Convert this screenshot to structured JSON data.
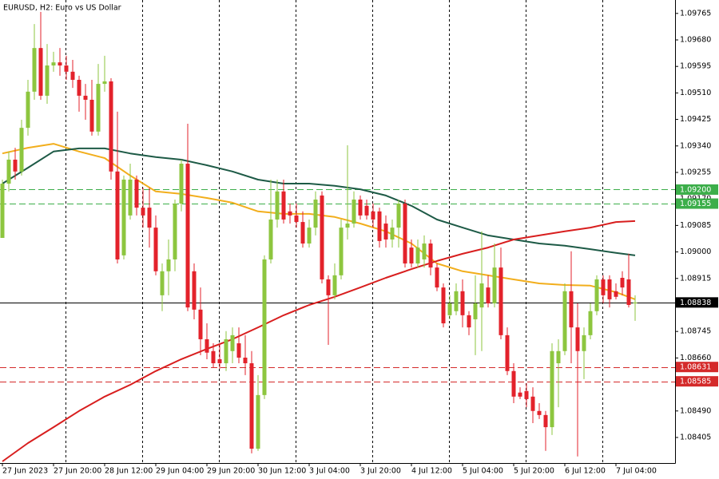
{
  "chart_data": {
    "type": "candlestick",
    "title": "EURUSD, H2:  Euro vs US Dollar",
    "categories": [
      "27 Jun 2023",
      null,
      null,
      null,
      null,
      null,
      null,
      null,
      "27 Jun 20:00",
      null,
      null,
      null,
      null,
      null,
      null,
      null,
      "28 Jun 12:00",
      null,
      null,
      null,
      null,
      null,
      null,
      null,
      "29 Jun 04:00",
      null,
      null,
      null,
      null,
      null,
      null,
      null,
      "29 Jun 20:00",
      null,
      null,
      null,
      null,
      null,
      null,
      null,
      "30 Jun 12:00",
      null,
      null,
      null,
      null,
      null,
      null,
      null,
      "3 Jul 04:00",
      null,
      null,
      null,
      null,
      null,
      null,
      null,
      "3 Jul 20:00",
      null,
      null,
      null,
      null,
      null,
      null,
      null,
      "4 Jul 12:00",
      null,
      null,
      null,
      null,
      null,
      null,
      null,
      "5 Jul 04:00",
      null,
      null,
      null,
      null,
      null,
      null,
      null,
      "5 Jul 20:00",
      null,
      null,
      null,
      null,
      null,
      null,
      null,
      "6 Jul 12:00",
      null,
      null,
      null,
      null,
      null,
      null,
      null,
      "7 Jul 04:00",
      null,
      null,
      null
    ],
    "open": [
      1.09045,
      1.09219,
      1.09296,
      1.09258,
      1.09398,
      1.09514,
      1.09654,
      1.09501,
      1.09598,
      1.09608,
      1.09598,
      1.09578,
      1.09552,
      1.09501,
      1.09488,
      1.09386,
      1.09539,
      1.09547,
      1.09258,
      1.08989,
      1.09117,
      1.09232,
      1.09142,
      1.09142,
      1.09078,
      1.08861,
      1.08938,
      1.08976,
      1.09155,
      1.09283,
      1.08938,
      1.08815,
      1.0872,
      1.08682,
      1.08656,
      1.08643,
      1.08682,
      1.08707,
      1.08661,
      1.08643,
      1.08369,
      1.08541,
      1.08976,
      1.09104,
      1.09194,
      1.0913,
      1.09117,
      1.09096,
      1.09027,
      1.09078,
      1.09181,
      1.08912,
      1.08861,
      1.08925,
      1.09078,
      1.09091,
      1.09168,
      1.09148,
      1.0913,
      1.0913,
      1.09091,
      1.0904,
      1.09078,
      1.09155,
      1.09014,
      1.08963,
      1.08976,
      1.09027,
      1.0895,
      1.08886,
      1.08797,
      1.0881,
      1.08874,
      1.08797,
      1.08784,
      1.08822,
      1.08886,
      1.08835,
      1.0895,
      1.08733,
      1.08618,
      1.08549,
      1.08554,
      1.08536,
      1.0849,
      1.08477,
      1.08438,
      1.08643,
      1.08682,
      1.08874,
      1.08758,
      1.08682,
      1.08733,
      1.0881,
      1.08912,
      1.08912,
      1.08874,
      1.08917,
      1.08912,
      1.08835
    ],
    "high": [
      1.09232,
      1.09322,
      1.09334,
      1.09424,
      1.09552,
      1.09731,
      1.0977,
      1.09667,
      1.09642,
      1.09654,
      1.09629,
      1.09616,
      1.09565,
      1.09539,
      1.09552,
      1.09603,
      1.09629,
      1.09557,
      1.0945,
      1.09245,
      1.09283,
      1.09245,
      1.09206,
      1.09206,
      1.09117,
      1.08963,
      1.0904,
      1.09168,
      1.09296,
      1.09411,
      1.08963,
      1.08886,
      1.08771,
      1.08707,
      1.08707,
      1.08746,
      1.08758,
      1.08758,
      1.08733,
      1.08682,
      1.08605,
      1.08989,
      1.09232,
      1.09232,
      1.09232,
      1.09155,
      1.09155,
      1.0913,
      1.09104,
      1.09194,
      1.09194,
      1.08925,
      1.08963,
      1.09104,
      1.09342,
      1.09194,
      1.09181,
      1.09168,
      1.09155,
      1.09142,
      1.09117,
      1.09104,
      1.09168,
      1.09168,
      1.0904,
      1.0904,
      1.09053,
      1.0904,
      1.08963,
      1.08899,
      1.08861,
      1.08899,
      1.08912,
      1.0881,
      1.08925,
      1.09066,
      1.08925,
      1.09027,
      1.09014,
      1.08758,
      1.08643,
      1.08566,
      1.08579,
      1.08566,
      1.08515,
      1.0849,
      1.08707,
      1.0872,
      1.08899,
      1.09002,
      1.08835,
      1.08758,
      1.08835,
      1.08925,
      1.08925,
      1.08925,
      1.08899,
      1.08938,
      1.08994,
      1.08861
    ],
    "low": [
      1.09045,
      1.09194,
      1.09232,
      1.09245,
      1.09373,
      1.09488,
      1.09488,
      1.09475,
      1.09578,
      1.09565,
      1.09552,
      1.09526,
      1.0945,
      1.09424,
      1.09373,
      1.09373,
      1.09514,
      1.09232,
      1.08963,
      1.08976,
      1.09104,
      1.09117,
      1.09078,
      1.09014,
      1.08925,
      1.0881,
      1.08861,
      1.08938,
      1.0913,
      1.0881,
      1.08784,
      1.08669,
      1.08656,
      1.0863,
      1.08625,
      1.08618,
      1.08643,
      1.08643,
      1.08605,
      1.08354,
      1.08362,
      1.08528,
      1.08963,
      1.09078,
      1.09091,
      1.09091,
      1.09078,
      1.09014,
      1.09014,
      1.09053,
      1.08899,
      1.08702,
      1.08848,
      1.08912,
      1.0904,
      1.09078,
      1.09104,
      1.09104,
      1.09078,
      1.09014,
      1.09014,
      1.09014,
      1.09014,
      1.0895,
      1.0895,
      1.0895,
      1.0895,
      1.08925,
      1.08874,
      1.08758,
      1.08784,
      1.08797,
      1.08758,
      1.08733,
      1.08669,
      1.08682,
      1.08822,
      1.08822,
      1.0872,
      1.08605,
      1.08515,
      1.08528,
      1.08502,
      1.08451,
      1.08464,
      1.08362,
      1.08413,
      1.08502,
      1.08669,
      1.08643,
      1.08344,
      1.08592,
      1.0872,
      1.08797,
      1.08835,
      1.08822,
      1.08848,
      1.08861,
      1.08822,
      1.08779
    ],
    "close": [
      1.09219,
      1.09296,
      1.09258,
      1.09398,
      1.09514,
      1.09654,
      1.09501,
      1.09598,
      1.09608,
      1.09598,
      1.09578,
      1.09552,
      1.09501,
      1.09488,
      1.09386,
      1.09539,
      1.09547,
      1.09258,
      1.08976,
      1.09232,
      1.09232,
      1.09142,
      1.09117,
      1.09078,
      1.08938,
      1.08938,
      1.08976,
      1.09155,
      1.09283,
      1.08822,
      1.08815,
      1.0872,
      1.08677,
      1.08643,
      1.08643,
      1.0872,
      1.08733,
      1.08661,
      1.08643,
      1.08369,
      1.08541,
      1.08976,
      1.09104,
      1.09194,
      1.09104,
      1.09117,
      1.09096,
      1.09027,
      1.09078,
      1.09168,
      1.08912,
      1.08861,
      1.08925,
      1.09078,
      1.09091,
      1.09168,
      1.09117,
      1.09117,
      1.09104,
      1.09035,
      1.0904,
      1.09078,
      1.09155,
      1.08963,
      1.08963,
      1.09014,
      1.09027,
      1.0895,
      1.08886,
      1.08771,
      1.08835,
      1.08874,
      1.08797,
      1.08758,
      1.08835,
      1.08899,
      1.08835,
      1.0895,
      1.08733,
      1.08618,
      1.08536,
      1.08536,
      1.08528,
      1.0849,
      1.08477,
      1.08438,
      1.08682,
      1.08682,
      1.08874,
      1.08758,
      1.08682,
      1.08733,
      1.0881,
      1.08912,
      1.08861,
      1.08848,
      1.08856,
      1.08886,
      1.0883,
      1.08838
    ],
    "up_color": "#8dc63f",
    "down_color": "#e3222b",
    "lines": [
      {
        "color": "#f2ae1c",
        "x": [
          0,
          4,
          8,
          12,
          16,
          20,
          24,
          28,
          32,
          36,
          40,
          44,
          48,
          52,
          56,
          60,
          64,
          68,
          72,
          76,
          80,
          84,
          88,
          92,
          96,
          99
        ],
        "values": [
          1.09316,
          1.09334,
          1.09347,
          1.09322,
          1.09301,
          1.09245,
          1.09194,
          1.09186,
          1.09173,
          1.09158,
          1.0913,
          1.09122,
          1.09122,
          1.09112,
          1.09091,
          1.09066,
          1.09027,
          1.08963,
          1.08938,
          1.08925,
          1.08912,
          1.08899,
          1.08894,
          1.08892,
          1.08871,
          1.08848
        ]
      },
      {
        "color": "#1d5a46",
        "x": [
          0,
          4,
          8,
          12,
          16,
          20,
          24,
          28,
          32,
          36,
          40,
          44,
          48,
          52,
          56,
          60,
          64,
          68,
          72,
          76,
          80,
          84,
          88,
          92,
          96,
          99
        ],
        "values": [
          1.09219,
          1.0927,
          1.09322,
          1.09332,
          1.09332,
          1.09316,
          1.09304,
          1.09296,
          1.09278,
          1.09258,
          1.09232,
          1.09219,
          1.09219,
          1.09212,
          1.09201,
          1.09181,
          1.09148,
          1.09104,
          1.09078,
          1.09053,
          1.0904,
          1.09027,
          1.0902,
          1.09009,
          1.08997,
          1.08989
        ]
      },
      {
        "color": "#d81e1e",
        "x": [
          0,
          4,
          8,
          12,
          16,
          20,
          24,
          28,
          32,
          36,
          40,
          44,
          48,
          52,
          56,
          60,
          64,
          68,
          72,
          76,
          80,
          84,
          88,
          92,
          96,
          99
        ],
        "values": [
          1.08328,
          1.08387,
          1.08438,
          1.0849,
          1.08536,
          1.08574,
          1.08618,
          1.08656,
          1.08689,
          1.0872,
          1.08758,
          1.08797,
          1.0883,
          1.08856,
          1.08886,
          1.08917,
          1.08945,
          1.08971,
          1.08994,
          1.09014,
          1.0904,
          1.09053,
          1.09066,
          1.09078,
          1.09096,
          1.09099
        ]
      }
    ],
    "levels": [
      {
        "value": 1.092,
        "label": "1.09200",
        "color": "#3cae4a"
      },
      {
        "value": 1.09155,
        "label": "1.09155",
        "color": "#3cae4a"
      },
      {
        "value": 1.08631,
        "label": "1.08631",
        "color": "#d42a2a"
      },
      {
        "value": 1.08585,
        "label": "1.08585",
        "color": "#d42a2a"
      }
    ],
    "current": {
      "value": 1.08838,
      "label": "1.08838",
      "color": "#000000"
    },
    "ylim": [
      1.08323,
      1.09808
    ],
    "yticks": [
      1.09765,
      {
        "value": 1.0968,
        "label": "1.09680"
      },
      1.09595,
      {
        "value": 1.0951,
        "label": "1.09510"
      },
      1.09425,
      {
        "value": 1.0934,
        "label": "1.09340"
      },
      1.09255,
      {
        "value": 1.0917,
        "label": "1.09170"
      },
      1.09085,
      {
        "value": 1.09,
        "label": "1.09000"
      },
      1.08915,
      {
        "value": 1.0883,
        "label": "1.08830"
      },
      1.08745,
      {
        "value": 1.0866,
        "label": "1.08660"
      },
      1.08575,
      {
        "value": 1.0849,
        "label": "1.08490"
      },
      1.08405
    ],
    "grid": true
  }
}
